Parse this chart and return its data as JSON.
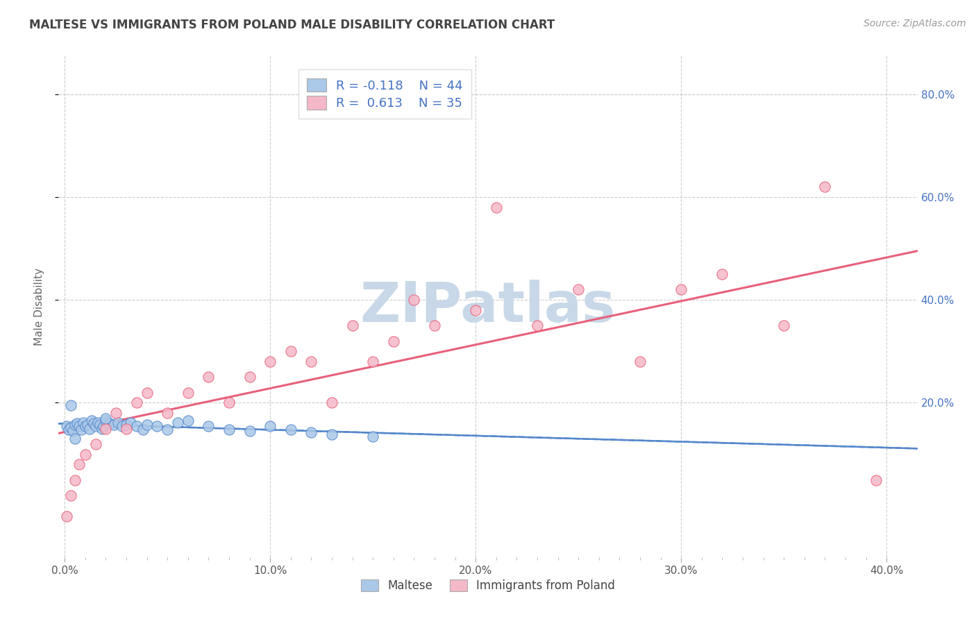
{
  "title": "MALTESE VS IMMIGRANTS FROM POLAND MALE DISABILITY CORRELATION CHART",
  "source": "Source: ZipAtlas.com",
  "xlabel": "",
  "ylabel": "Male Disability",
  "xlim": [
    -0.003,
    0.415
  ],
  "ylim": [
    -0.1,
    0.875
  ],
  "xtick_labels": [
    "0.0%",
    "",
    "",
    "",
    "",
    "10.0%",
    "",
    "",
    "",
    "",
    "20.0%",
    "",
    "",
    "",
    "",
    "30.0%",
    "",
    "",
    "",
    "",
    "40.0%"
  ],
  "xtick_values": [
    0.0,
    0.02,
    0.04,
    0.06,
    0.08,
    0.1,
    0.12,
    0.14,
    0.16,
    0.18,
    0.2,
    0.22,
    0.24,
    0.26,
    0.28,
    0.3,
    0.32,
    0.34,
    0.36,
    0.38,
    0.4
  ],
  "xtick_major_labels": [
    "0.0%",
    "10.0%",
    "20.0%",
    "30.0%",
    "40.0%"
  ],
  "xtick_major_values": [
    0.0,
    0.1,
    0.2,
    0.3,
    0.4
  ],
  "ytick_labels": [
    "20.0%",
    "40.0%",
    "60.0%",
    "80.0%"
  ],
  "ytick_values": [
    0.2,
    0.4,
    0.6,
    0.8
  ],
  "legend_labels": [
    "Maltese",
    "Immigrants from Poland"
  ],
  "maltese_R": -0.118,
  "maltese_N": 44,
  "poland_R": 0.613,
  "poland_N": 35,
  "maltese_color": "#aac8e8",
  "poland_color": "#f5b8c8",
  "maltese_line_color": "#5588cc",
  "poland_line_color": "#e8607a",
  "background_color": "#ffffff",
  "grid_color": "#cccccc",
  "title_color": "#444444",
  "watermark_color": "#c8d8e8",
  "legend_box_color_maltese": "#aac8e8",
  "legend_box_color_poland": "#f5b8c8",
  "legend_text_color": "#333333",
  "stat_color": "#4472c4",
  "maltese_x": [
    0.001,
    0.002,
    0.003,
    0.004,
    0.005,
    0.006,
    0.007,
    0.008,
    0.009,
    0.01,
    0.011,
    0.012,
    0.013,
    0.014,
    0.015,
    0.016,
    0.017,
    0.018,
    0.019,
    0.02,
    0.022,
    0.024,
    0.026,
    0.028,
    0.03,
    0.032,
    0.035,
    0.038,
    0.04,
    0.045,
    0.05,
    0.055,
    0.06,
    0.07,
    0.08,
    0.09,
    0.1,
    0.11,
    0.12,
    0.13,
    0.15,
    0.003,
    0.005,
    0.02
  ],
  "maltese_y": [
    0.155,
    0.148,
    0.152,
    0.145,
    0.158,
    0.16,
    0.155,
    0.148,
    0.162,
    0.155,
    0.158,
    0.15,
    0.165,
    0.16,
    0.155,
    0.162,
    0.158,
    0.15,
    0.155,
    0.165,
    0.16,
    0.158,
    0.162,
    0.155,
    0.158,
    0.162,
    0.155,
    0.148,
    0.158,
    0.155,
    0.148,
    0.162,
    0.165,
    0.155,
    0.148,
    0.145,
    0.155,
    0.148,
    0.142,
    0.138,
    0.135,
    0.195,
    0.13,
    0.17
  ],
  "poland_x": [
    0.001,
    0.003,
    0.005,
    0.007,
    0.01,
    0.015,
    0.02,
    0.025,
    0.03,
    0.035,
    0.04,
    0.05,
    0.06,
    0.07,
    0.08,
    0.09,
    0.1,
    0.11,
    0.12,
    0.13,
    0.14,
    0.15,
    0.16,
    0.17,
    0.18,
    0.2,
    0.21,
    0.23,
    0.25,
    0.28,
    0.3,
    0.32,
    0.35,
    0.37,
    0.395
  ],
  "poland_y": [
    -0.02,
    0.02,
    0.05,
    0.08,
    0.1,
    0.12,
    0.15,
    0.18,
    0.15,
    0.2,
    0.22,
    0.18,
    0.22,
    0.25,
    0.2,
    0.25,
    0.28,
    0.3,
    0.28,
    0.2,
    0.35,
    0.28,
    0.32,
    0.4,
    0.35,
    0.38,
    0.58,
    0.35,
    0.42,
    0.28,
    0.42,
    0.45,
    0.35,
    0.62,
    0.05
  ]
}
